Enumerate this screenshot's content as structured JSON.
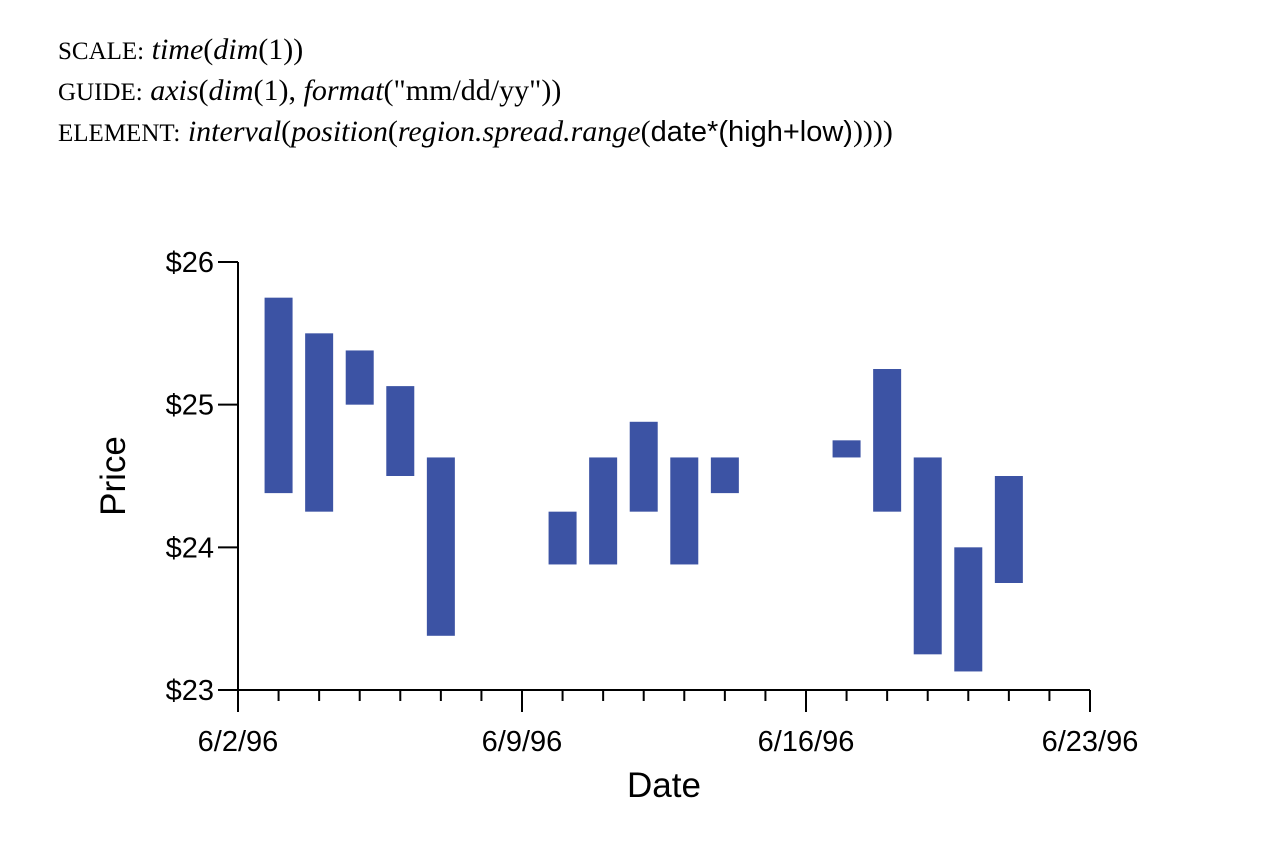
{
  "spec": {
    "scale": {
      "keyword": "SCALE:",
      "func": "time",
      "open": "(",
      "arg_func": "dim",
      "arg": "(1))"
    },
    "guide": {
      "keyword": "GUIDE:",
      "func": "axis",
      "open": "(",
      "arg_func": "dim",
      "arg": "(1), ",
      "format_func": "format",
      "format_arg": "(\"mm/dd/yy\"))"
    },
    "element": {
      "keyword": "ELEMENT:",
      "func": "interval",
      "open1": "(",
      "func2": "position",
      "open2": "(",
      "func3": "region.spread.range",
      "open3": "(",
      "vars": "date*(high+low)",
      "close": "))))"
    }
  },
  "chart_data": {
    "type": "bar",
    "subtype": "range",
    "xlabel": "Date",
    "ylabel": "Price",
    "x_ticks": [
      "6/2/96",
      "6/9/96",
      "6/16/96",
      "6/23/96"
    ],
    "y_ticks": [
      "$23",
      "$24",
      "$25",
      "$26"
    ],
    "ylim": [
      23,
      26
    ],
    "xlim": [
      "1996-06-02",
      "1996-06-23"
    ],
    "bar_color": "#3c53a4",
    "series": [
      {
        "points": [
          {
            "date": "1996-06-03",
            "low": 24.38,
            "high": 25.75
          },
          {
            "date": "1996-06-04",
            "low": 24.25,
            "high": 25.5
          },
          {
            "date": "1996-06-05",
            "low": 25.0,
            "high": 25.38
          },
          {
            "date": "1996-06-06",
            "low": 24.5,
            "high": 25.13
          },
          {
            "date": "1996-06-07",
            "low": 23.38,
            "high": 24.63
          },
          {
            "date": "1996-06-10",
            "low": 23.88,
            "high": 24.25
          },
          {
            "date": "1996-06-11",
            "low": 23.88,
            "high": 24.63
          },
          {
            "date": "1996-06-12",
            "low": 24.25,
            "high": 24.88
          },
          {
            "date": "1996-06-13",
            "low": 23.88,
            "high": 24.63
          },
          {
            "date": "1996-06-14",
            "low": 24.38,
            "high": 24.63
          },
          {
            "date": "1996-06-17",
            "low": 24.63,
            "high": 24.75
          },
          {
            "date": "1996-06-18",
            "low": 24.25,
            "high": 25.25
          },
          {
            "date": "1996-06-19",
            "low": 23.25,
            "high": 24.63
          },
          {
            "date": "1996-06-20",
            "low": 23.13,
            "high": 24.0
          },
          {
            "date": "1996-06-21",
            "low": 23.75,
            "high": 24.5
          }
        ]
      }
    ]
  }
}
